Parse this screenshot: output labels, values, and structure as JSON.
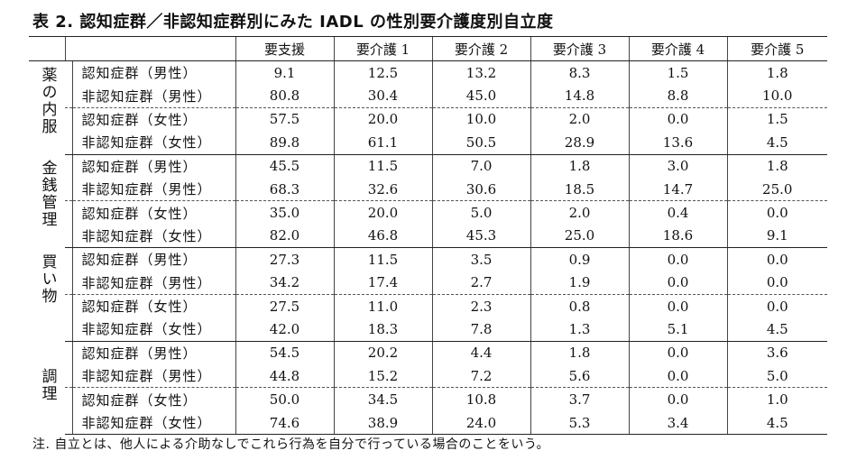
{
  "title": "表 2. 認知症群／非認知症群別にみた IADL の性別要介護度別自立度",
  "columns": [
    "要支援",
    "要介護 1",
    "要介護 2",
    "要介護 3",
    "要介護 4",
    "要介護 5"
  ],
  "groups": [
    {
      "category": "薬の内服",
      "rows": [
        {
          "label": "認知症群（男性）",
          "values": [
            "9.1",
            "12.5",
            "13.2",
            "8.3",
            "1.5",
            "1.8"
          ]
        },
        {
          "label": "非認知症群（男性）",
          "values": [
            "80.8",
            "30.4",
            "45.0",
            "14.8",
            "8.8",
            "10.0"
          ]
        },
        {
          "label": "認知症群（女性）",
          "values": [
            "57.5",
            "20.0",
            "10.0",
            "2.0",
            "0.0",
            "1.5"
          ]
        },
        {
          "label": "非認知症群（女性）",
          "values": [
            "89.8",
            "61.1",
            "50.5",
            "28.9",
            "13.6",
            "4.5"
          ]
        }
      ]
    },
    {
      "category": "金銭管理",
      "rows": [
        {
          "label": "認知症群（男性）",
          "values": [
            "45.5",
            "11.5",
            "7.0",
            "1.8",
            "3.0",
            "1.8"
          ]
        },
        {
          "label": "非認知症群（男性）",
          "values": [
            "68.3",
            "32.6",
            "30.6",
            "18.5",
            "14.7",
            "25.0"
          ]
        },
        {
          "label": "認知症群（女性）",
          "values": [
            "35.0",
            "20.0",
            "5.0",
            "2.0",
            "0.4",
            "0.0"
          ]
        },
        {
          "label": "非認知症群（女性）",
          "values": [
            "82.0",
            "46.8",
            "45.3",
            "25.0",
            "18.6",
            "9.1"
          ]
        }
      ]
    },
    {
      "category": "買い物",
      "rows": [
        {
          "label": "認知症群（男性）",
          "values": [
            "27.3",
            "11.5",
            "3.5",
            "0.9",
            "0.0",
            "0.0"
          ]
        },
        {
          "label": "非認知症群（男性）",
          "values": [
            "34.2",
            "17.4",
            "2.7",
            "1.9",
            "0.0",
            "0.0"
          ]
        },
        {
          "label": "認知症群（女性）",
          "values": [
            "27.5",
            "11.0",
            "2.3",
            "0.8",
            "0.0",
            "0.0"
          ]
        },
        {
          "label": "非認知症群（女性）",
          "values": [
            "42.0",
            "18.3",
            "7.8",
            "1.3",
            "5.1",
            "4.5"
          ]
        }
      ]
    },
    {
      "category": "調理",
      "rows": [
        {
          "label": "認知症群（男性）",
          "values": [
            "54.5",
            "20.2",
            "4.4",
            "1.8",
            "0.0",
            "3.6"
          ]
        },
        {
          "label": "非認知症群（男性）",
          "values": [
            "44.8",
            "15.2",
            "7.2",
            "5.6",
            "0.0",
            "5.0"
          ]
        },
        {
          "label": "認知症群（女性）",
          "values": [
            "50.0",
            "34.5",
            "10.8",
            "3.7",
            "0.0",
            "1.0"
          ]
        },
        {
          "label": "非認知症群（女性）",
          "values": [
            "74.6",
            "38.9",
            "24.0",
            "5.3",
            "3.4",
            "4.5"
          ]
        }
      ]
    }
  ],
  "note": "注.  自立とは、他人による介助なしでこれら行為を自分で行っている場合のことをいう。"
}
